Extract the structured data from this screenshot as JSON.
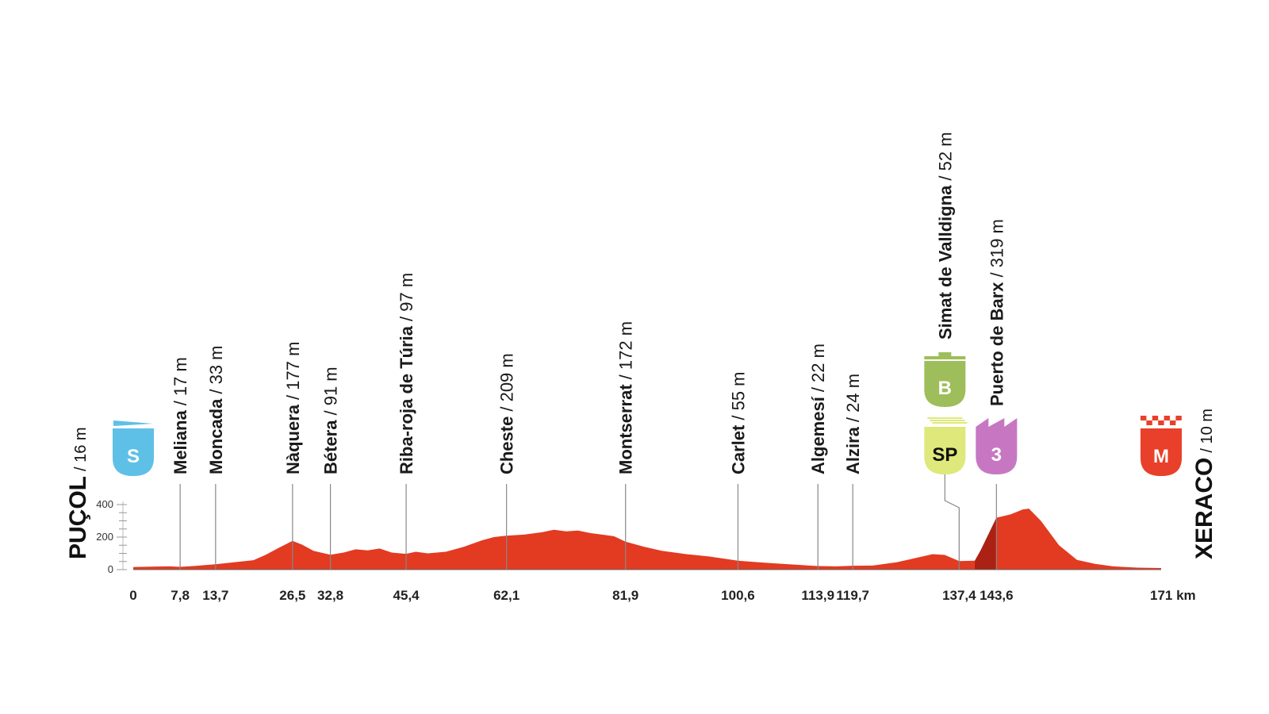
{
  "start": {
    "name": "PUÇOL",
    "alt": "/ 16 m",
    "badge": "S",
    "color": "#5ec0e6"
  },
  "finish": {
    "name": "XERACO",
    "alt": "/ 10 m",
    "badge": "M",
    "color": "#e8402a"
  },
  "colors": {
    "profile": "#e23b22",
    "profile_dark": "#a11d10"
  },
  "chart_data": {
    "type": "area",
    "xlabel": "km",
    "ylim": [
      0,
      420
    ],
    "xlim": [
      0,
      171
    ],
    "y_ticks": [
      "0",
      "200",
      "400"
    ],
    "y_tick_values": [
      0,
      200,
      400
    ],
    "distance_ticks": [
      {
        "km": 0,
        "label": "0"
      },
      {
        "km": 7.8,
        "label": "7,8"
      },
      {
        "km": 13.7,
        "label": "13,7"
      },
      {
        "km": 26.5,
        "label": "26,5"
      },
      {
        "km": 32.8,
        "label": "32,8"
      },
      {
        "km": 45.4,
        "label": "45,4"
      },
      {
        "km": 62.1,
        "label": "62,1"
      },
      {
        "km": 81.9,
        "label": "81,9"
      },
      {
        "km": 100.6,
        "label": "100,6"
      },
      {
        "km": 113.9,
        "label": "113,9"
      },
      {
        "km": 119.7,
        "label": "119,7"
      },
      {
        "km": 137.4,
        "label": "137,4"
      },
      {
        "km": 143.6,
        "label": "143,6"
      },
      {
        "km": 171,
        "label": "171 km"
      }
    ],
    "waypoints": [
      {
        "km": 7.8,
        "name": "Meliana",
        "alt": "/ 17 m"
      },
      {
        "km": 13.7,
        "name": "Moncada",
        "alt": "/ 33 m"
      },
      {
        "km": 26.5,
        "name": "Nàquera",
        "alt": "/ 177 m"
      },
      {
        "km": 32.8,
        "name": "Bétera",
        "alt": "/ 91 m"
      },
      {
        "km": 45.4,
        "name": "Riba-roja de Túria",
        "alt": "/ 97 m"
      },
      {
        "km": 62.1,
        "name": "Cheste",
        "alt": "/ 209 m"
      },
      {
        "km": 81.9,
        "name": "Montserrat",
        "alt": "/ 172 m"
      },
      {
        "km": 100.6,
        "name": "Carlet",
        "alt": "/ 55 m"
      },
      {
        "km": 113.9,
        "name": "Algemesí",
        "alt": "/ 22 m"
      },
      {
        "km": 119.7,
        "name": "Alzira",
        "alt": "/ 24 m"
      },
      {
        "km": 137.4,
        "name": "Simat de Valldigna",
        "alt": "/ 52 m"
      },
      {
        "km": 143.6,
        "name": "Puerto de Barx",
        "alt": "/ 319 m"
      }
    ],
    "badges": [
      {
        "km": 137.4,
        "label": "B",
        "color": "#9dbe5a",
        "kind": "bonus"
      },
      {
        "km": 137.4,
        "label": "SP",
        "color": "#dfe87a",
        "kind": "sprint"
      },
      {
        "km": 143.6,
        "label": "3",
        "color": "#c777c2",
        "kind": "climb"
      }
    ],
    "elevation": [
      [
        0,
        16
      ],
      [
        3,
        18
      ],
      [
        6,
        20
      ],
      [
        7.8,
        17
      ],
      [
        10,
        22
      ],
      [
        13.7,
        33
      ],
      [
        16,
        42
      ],
      [
        18,
        50
      ],
      [
        20,
        58
      ],
      [
        22,
        90
      ],
      [
        24,
        130
      ],
      [
        26.5,
        177
      ],
      [
        28,
        155
      ],
      [
        30,
        115
      ],
      [
        32.8,
        91
      ],
      [
        35,
        105
      ],
      [
        37,
        125
      ],
      [
        39,
        118
      ],
      [
        41,
        130
      ],
      [
        43,
        105
      ],
      [
        45.4,
        97
      ],
      [
        47,
        110
      ],
      [
        49,
        100
      ],
      [
        52,
        110
      ],
      [
        55,
        140
      ],
      [
        58,
        180
      ],
      [
        60,
        200
      ],
      [
        62.1,
        209
      ],
      [
        65,
        215
      ],
      [
        68,
        230
      ],
      [
        70,
        245
      ],
      [
        72,
        235
      ],
      [
        74,
        240
      ],
      [
        76,
        225
      ],
      [
        78,
        215
      ],
      [
        80,
        205
      ],
      [
        81.9,
        172
      ],
      [
        85,
        140
      ],
      [
        88,
        115
      ],
      [
        92,
        95
      ],
      [
        96,
        80
      ],
      [
        100.6,
        55
      ],
      [
        104,
        45
      ],
      [
        108,
        35
      ],
      [
        113.9,
        22
      ],
      [
        117,
        20
      ],
      [
        119.7,
        24
      ],
      [
        123,
        25
      ],
      [
        127,
        45
      ],
      [
        130,
        70
      ],
      [
        133,
        95
      ],
      [
        135,
        90
      ],
      [
        137.4,
        52
      ],
      [
        140,
        55
      ],
      [
        141,
        120
      ],
      [
        143.6,
        319
      ],
      [
        146,
        340
      ],
      [
        148,
        370
      ],
      [
        149,
        375
      ],
      [
        151,
        300
      ],
      [
        154,
        150
      ],
      [
        157,
        60
      ],
      [
        160,
        35
      ],
      [
        163,
        20
      ],
      [
        167,
        12
      ],
      [
        171,
        10
      ]
    ]
  }
}
